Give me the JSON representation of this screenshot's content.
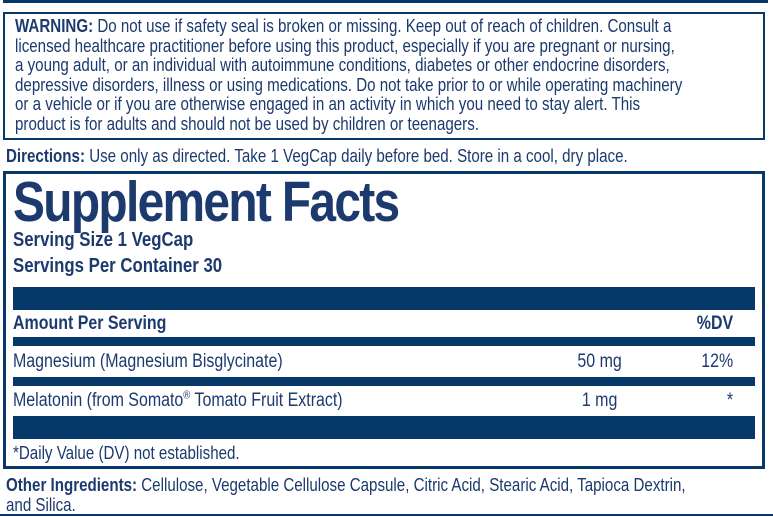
{
  "colors": {
    "navy_text": "#1c3a6e",
    "navy_fill": "#06386a"
  },
  "warning": {
    "label": "WARNING:",
    "text": "Do not use if safety seal is broken or missing. Keep out of reach of children. Consult a\nlicensed healthcare practitioner before using this product, especially if you are pregnant or nursing,\na young adult, or an individual with autoimmune conditions, diabetes or other endocrine disorders,\ndepressive disorders, illness or using medications. Do not take prior to or while operating machinery\nor a vehicle or if you are otherwise engaged in an activity in which you need to stay alert. This\nproduct is for adults and should not be used by children or teenagers."
  },
  "directions": {
    "label": "Directions:",
    "text": "Use only as directed. Take 1 VegCap daily before bed. Store in a cool, dry place."
  },
  "supplement_facts": {
    "title": "Supplement Facts",
    "serving_size": "Serving Size 1 VegCap",
    "servings_per_container": "Servings Per Container 30",
    "header": {
      "amount_label": "Amount Per Serving",
      "dv_label": "%DV"
    },
    "rows": [
      {
        "name": "Magnesium (Magnesium Bisglycinate)",
        "amount": "50 mg",
        "dv": "12%"
      },
      {
        "name_pre": "Melatonin (from Somato",
        "name_sup": "®",
        "name_post": " Tomato Fruit Extract)",
        "amount": "1 mg",
        "dv": "*"
      }
    ],
    "footnote": "*Daily Value (DV) not established."
  },
  "other_ingredients": {
    "label": "Other Ingredients:",
    "text": "Cellulose, Vegetable Cellulose Capsule, Citric Acid, Stearic Acid, Tapioca Dextrin,\nand Silica."
  }
}
